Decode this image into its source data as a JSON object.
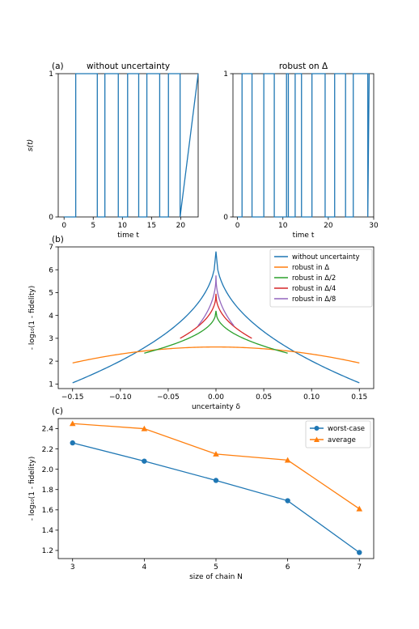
{
  "chart_data": [
    {
      "id": "a1",
      "type": "line",
      "panel_label": "(a)",
      "title": "without uncertainty",
      "xlabel": "time t",
      "ylabel": "s(t)",
      "xlim": [
        -1,
        23
      ],
      "ylim": [
        0,
        1
      ],
      "xticks": [
        0,
        5,
        10,
        15,
        20
      ],
      "yticks": [
        0,
        1
      ],
      "step": true,
      "series": [
        {
          "color": "#1f77b4",
          "x": [
            0,
            2,
            2,
            5.7,
            5.7,
            7,
            7,
            9.3,
            9.3,
            10.9,
            10.9,
            12.8,
            12.8,
            14.2,
            14.2,
            16.4,
            16.4,
            17.9,
            17.9,
            19.9,
            19.9,
            23
          ],
          "y": [
            0,
            0,
            1,
            1,
            0,
            0,
            1,
            1,
            0,
            0,
            1,
            1,
            0,
            0,
            1,
            1,
            0,
            0,
            1,
            1,
            0,
            1
          ]
        }
      ]
    },
    {
      "id": "a2",
      "type": "line",
      "title": "robust on Δ",
      "xlabel": "time t",
      "xlim": [
        -1,
        30
      ],
      "ylim": [
        0,
        1
      ],
      "xticks": [
        0,
        10,
        20,
        30
      ],
      "yticks": [
        0,
        1
      ],
      "step": true,
      "series": [
        {
          "color": "#1f77b4",
          "x": [
            0,
            1,
            1,
            3.2,
            3.2,
            5.8,
            5.8,
            8.1,
            8.1,
            10.8,
            10.8,
            11.2,
            11.2,
            12.7,
            12.7,
            14.1,
            14.1,
            16.4,
            16.4,
            19.3,
            19.3,
            21.4,
            21.4,
            23.8,
            23.8,
            25.5,
            25.5,
            28.7,
            28.7,
            29
          ],
          "y": [
            0,
            0,
            1,
            1,
            0,
            0,
            1,
            1,
            0,
            0,
            1,
            1,
            0,
            0,
            1,
            1,
            0,
            0,
            1,
            1,
            0,
            0,
            1,
            1,
            0,
            0,
            1,
            1,
            0,
            1
          ]
        }
      ]
    },
    {
      "id": "b",
      "type": "line",
      "panel_label": "(b)",
      "xlabel": "uncertainty δ",
      "ylabel": "- log₁₀(1 - fidelity)",
      "xlim": [
        -0.165,
        0.165
      ],
      "ylim": [
        0.8,
        7.0
      ],
      "xticks": [
        "−0.15",
        "−0.10",
        "−0.05",
        "0.00",
        "0.05",
        "0.10",
        "0.15"
      ],
      "yticks": [
        1,
        2,
        3,
        4,
        5,
        6,
        7
      ],
      "legend_position": "top-right",
      "series": [
        {
          "name": "without uncertainty",
          "color": "#1f77b4",
          "peak": 6.8,
          "edge": 1.05,
          "half_width": 0.15,
          "shape": "cusp"
        },
        {
          "name": "robust in Δ",
          "color": "#ff7f0e",
          "peak": 2.62,
          "edge": 1.92,
          "half_width": 0.15,
          "shape": "smooth"
        },
        {
          "name": "robust in Δ/2",
          "color": "#2ca02c",
          "peak": 4.2,
          "edge": 2.35,
          "half_width": 0.075,
          "shape": "cusp"
        },
        {
          "name": "robust in Δ/4",
          "color": "#d62728",
          "peak": 4.95,
          "edge": 3.0,
          "half_width": 0.0375,
          "shape": "cusp"
        },
        {
          "name": "robust in Δ/8",
          "color": "#9467bd",
          "peak": 5.75,
          "edge": 3.55,
          "half_width": 0.01875,
          "shape": "cusp"
        }
      ]
    },
    {
      "id": "c",
      "type": "line",
      "panel_label": "(c)",
      "xlabel": "size of chain N",
      "ylabel": "- log₁₀(1 - fidelity)",
      "xlim": [
        2.8,
        7.2
      ],
      "ylim": [
        1.12,
        2.5
      ],
      "xticks": [
        3,
        4,
        5,
        6,
        7
      ],
      "yticks": [
        "1.2",
        "1.4",
        "1.6",
        "1.8",
        "2.0",
        "2.2",
        "2.4"
      ],
      "legend_position": "top-right",
      "categories": [
        3,
        4,
        5,
        6,
        7
      ],
      "series": [
        {
          "name": "worst-case",
          "color": "#1f77b4",
          "marker": "circle",
          "values": [
            2.26,
            2.08,
            1.89,
            1.69,
            1.18
          ]
        },
        {
          "name": "average",
          "color": "#ff7f0e",
          "marker": "triangle",
          "values": [
            2.45,
            2.4,
            2.15,
            2.09,
            1.61
          ]
        }
      ]
    }
  ]
}
